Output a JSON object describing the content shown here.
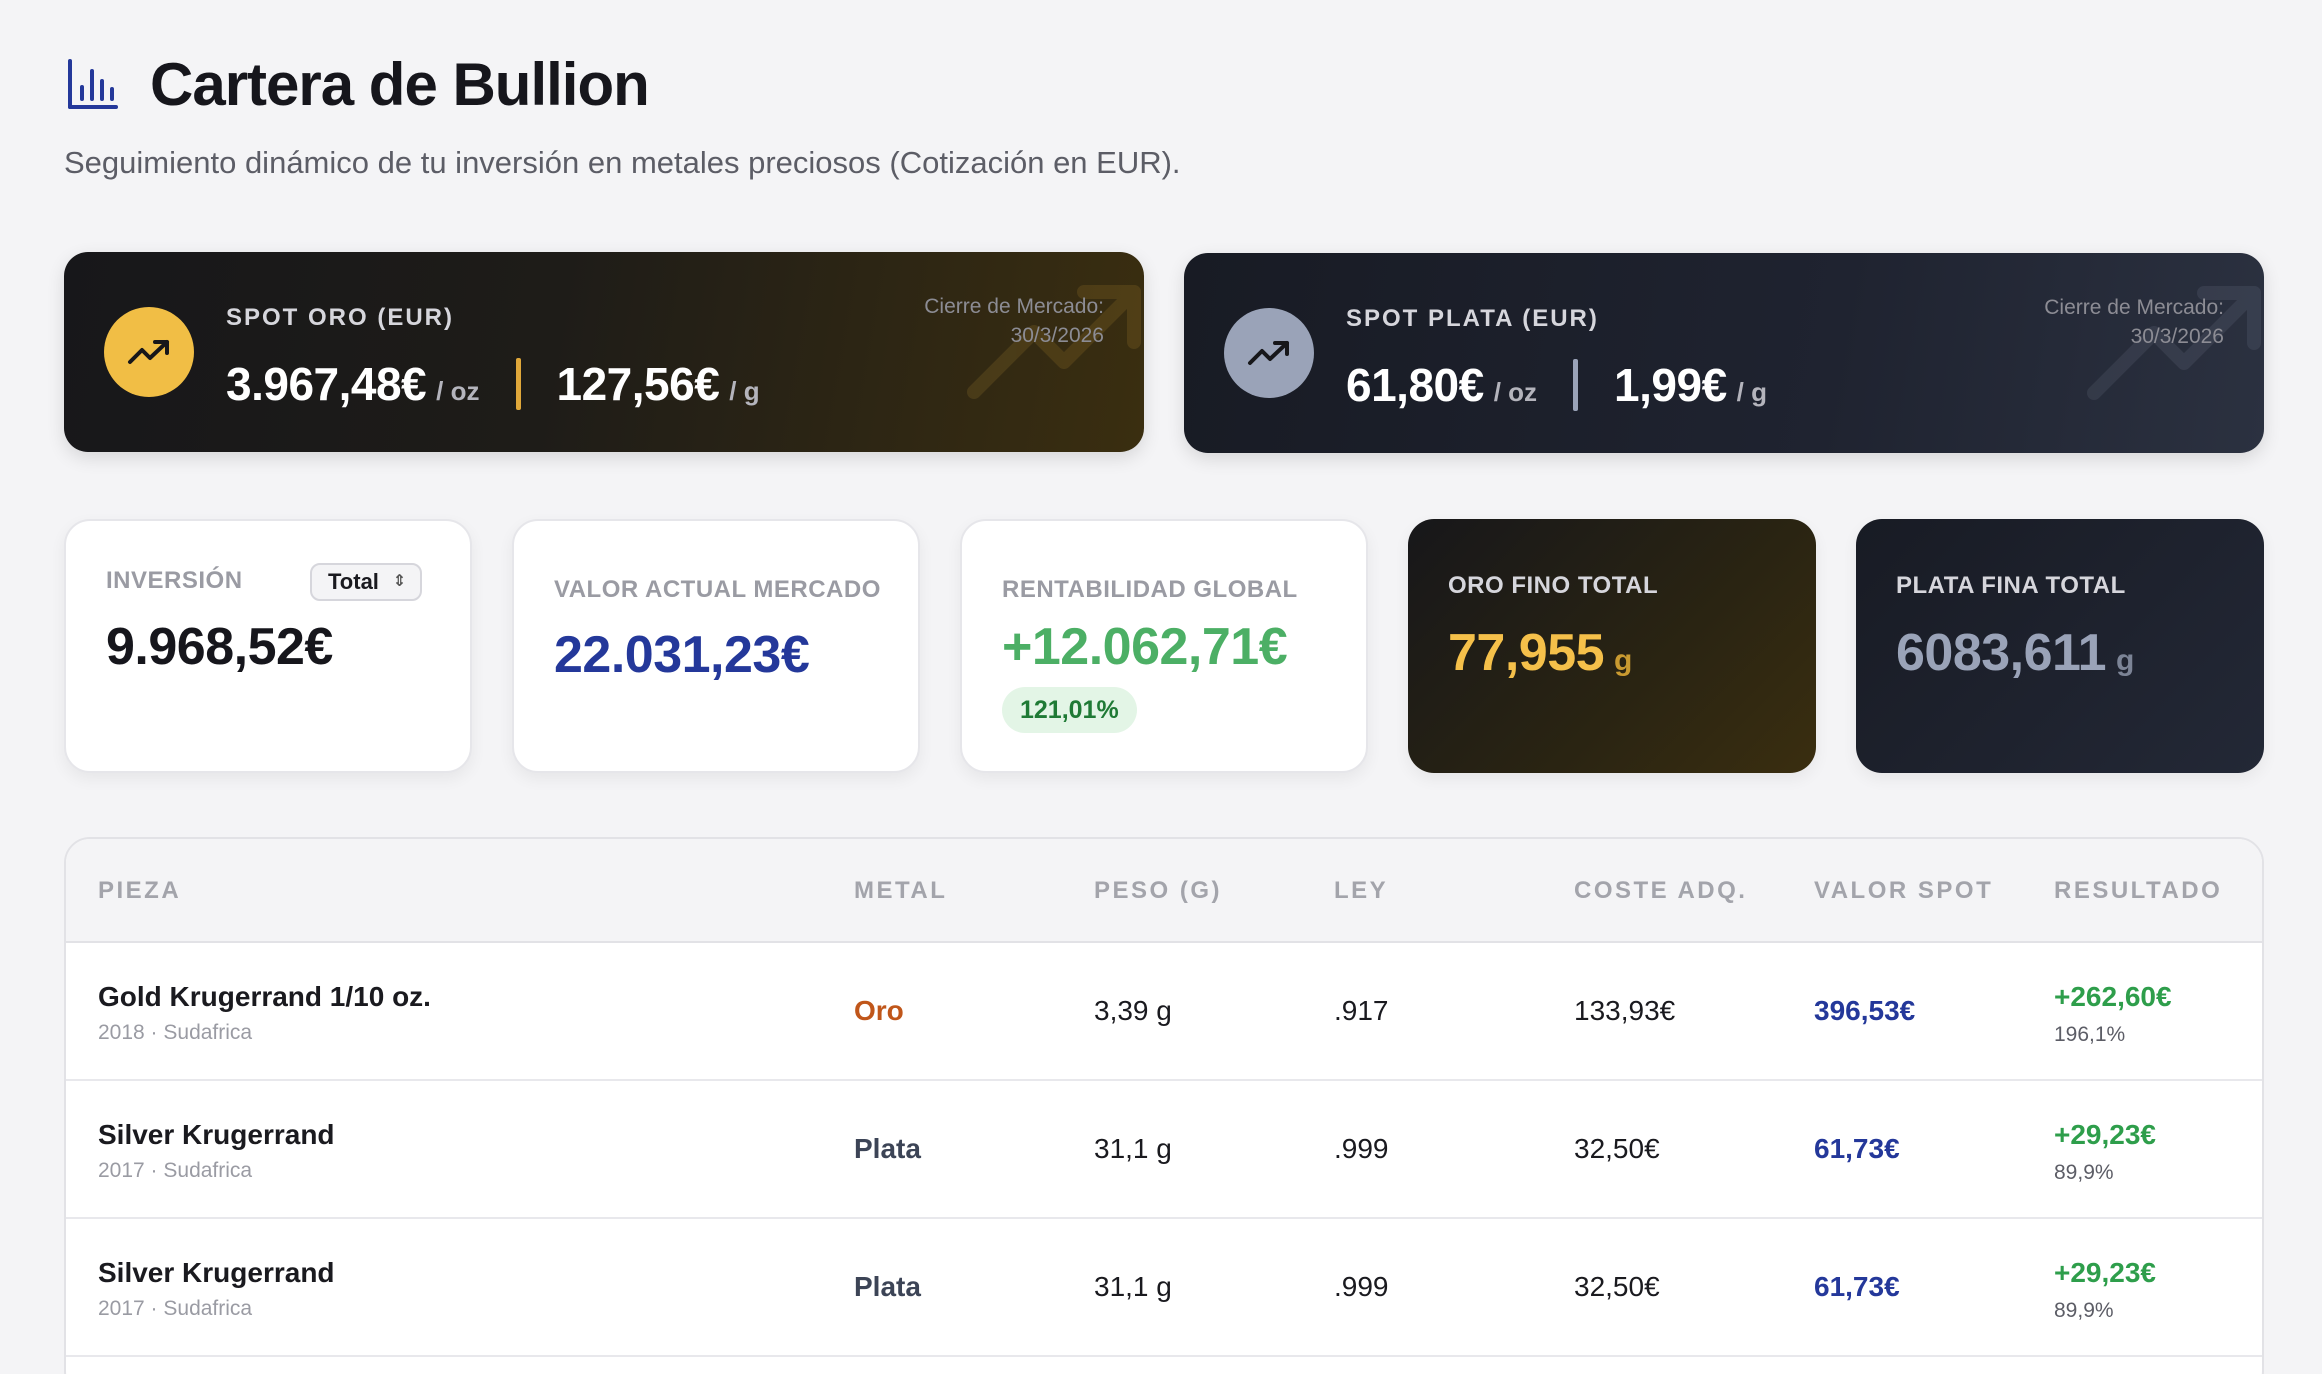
{
  "header": {
    "title": "Cartera de Bullion",
    "subtitle": "Seguimiento dinámico de tu inversión en metales preciosos (Cotización en EUR)."
  },
  "spot_gold": {
    "label": "SPOT ORO (EUR)",
    "price_oz": "3.967,48€",
    "unit_oz": "/ oz",
    "price_g": "127,56€",
    "unit_g": "/ g",
    "close_label": "Cierre de Mercado:",
    "close_date": "30/3/2026",
    "color": "#f1be45"
  },
  "spot_silver": {
    "label": "SPOT PLATA (EUR)",
    "price_oz": "61,80€",
    "unit_oz": "/ oz",
    "price_g": "1,99€",
    "unit_g": "/ g",
    "close_label": "Cierre de Mercado:",
    "close_date": "30/3/2026",
    "color": "#9aa3b8"
  },
  "stats": {
    "investment": {
      "label": "INVERSIÓN",
      "select_value": "Total",
      "value": "9.968,52€"
    },
    "market_value": {
      "label": "VALOR ACTUAL MERCADO",
      "value": "22.031,23€"
    },
    "global_return": {
      "label": "RENTABILIDAD GLOBAL",
      "value": "+12.062,71€",
      "percent": "121,01%"
    },
    "gold_total": {
      "label": "ORO FINO TOTAL",
      "value": "77,955",
      "unit": "g"
    },
    "silver_total": {
      "label": "PLATA FINA TOTAL",
      "value": "6083,611",
      "unit": "g"
    }
  },
  "table": {
    "headers": [
      "PIEZA",
      "METAL",
      "PESO (G)",
      "LEY",
      "COSTE ADQ.",
      "VALOR SPOT",
      "RESULTADO"
    ],
    "rows": [
      {
        "name": "Gold Krugerrand 1/10 oz.",
        "sub": "2018 · Sudafrica",
        "metal": "Oro",
        "weight": "3,39 g",
        "fineness": ".917",
        "cost": "133,93€",
        "spot": "396,53€",
        "result": "+262,60€",
        "result_pct": "196,1%"
      },
      {
        "name": "Silver Krugerrand",
        "sub": "2017 · Sudafrica",
        "metal": "Plata",
        "weight": "31,1 g",
        "fineness": ".999",
        "cost": "32,50€",
        "spot": "61,73€",
        "result": "+29,23€",
        "result_pct": "89,9%"
      },
      {
        "name": "Silver Krugerrand",
        "sub": "2017 · Sudafrica",
        "metal": "Plata",
        "weight": "31,1 g",
        "fineness": ".999",
        "cost": "32,50€",
        "spot": "61,73€",
        "result": "+29,23€",
        "result_pct": "89,9%"
      }
    ]
  },
  "colors": {
    "accent_blue": "#24389a",
    "gold": "#f5c04a",
    "silver": "#9aa3b8",
    "positive": "#4caf65"
  }
}
